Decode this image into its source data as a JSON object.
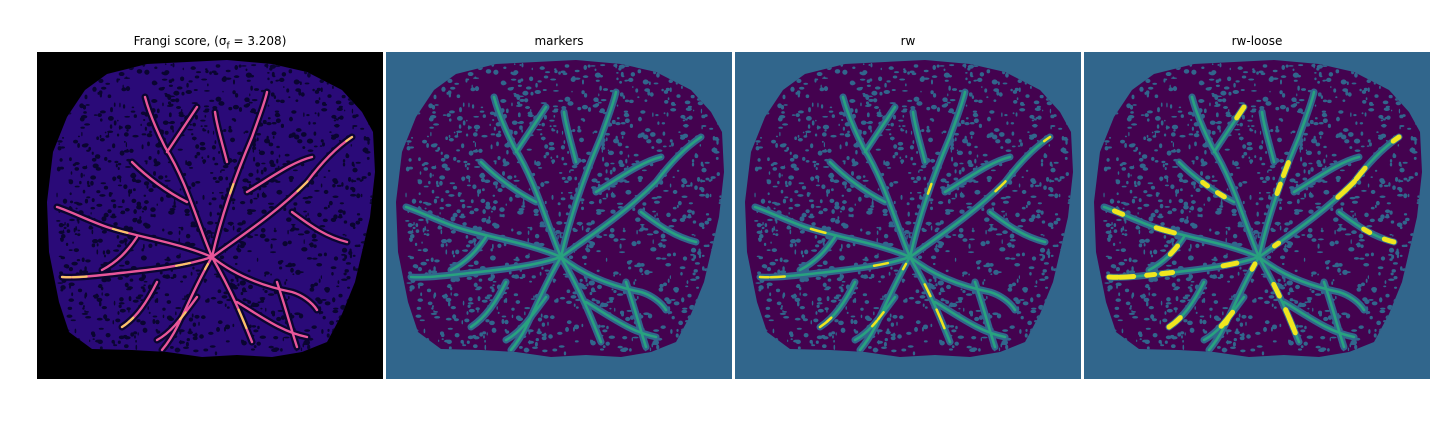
{
  "panels": [
    {
      "title": "Frangi score, (σ",
      "title_sub": "f",
      "title_rest": " = 3.208)",
      "background": "#000000",
      "blob": "#2a0a78",
      "texture": "#0a0530",
      "vessel": "#e8569a",
      "highlight": "#f9c468"
    },
    {
      "title": "markers",
      "background": "#31668c",
      "blob": "#44024f",
      "texture": "#31668c",
      "vessel": "#28a27f"
    },
    {
      "title": "rw",
      "background": "#31668c",
      "blob": "#44024f",
      "texture": "#31668c",
      "vessel": "#28a27f",
      "highlight": "#f0e61f"
    },
    {
      "title": "rw-loose",
      "background": "#31668c",
      "blob": "#44024f",
      "texture": "#31668c",
      "vessel": "#28a27f",
      "highlight": "#f0e61f"
    }
  ]
}
